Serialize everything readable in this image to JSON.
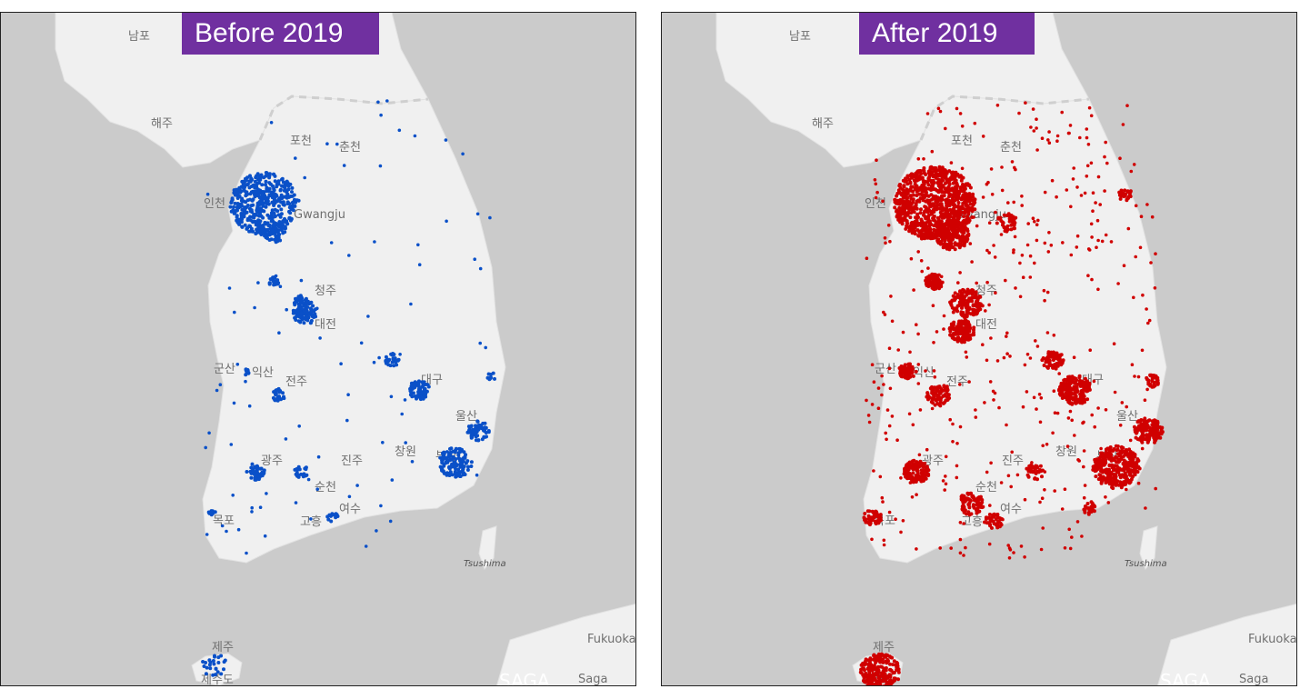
{
  "panels": [
    {
      "id": "before",
      "title": "Before 2019",
      "dot_color": "#0a50c8"
    },
    {
      "id": "after",
      "title": "After 2019",
      "dot_color": "#d00000"
    }
  ],
  "map_labels": {
    "nampo": "남포",
    "haeju": "해주",
    "pocheon": "포천",
    "chuncheon": "춘천",
    "incheon": "인천",
    "gwangju_gg": "Gwangju",
    "cheongju": "청주",
    "daejeon": "대전",
    "gunsan": "군산",
    "iksan": "익산",
    "jeonju": "전주",
    "daegu": "대구",
    "ulsan": "울산",
    "changwon": "창원",
    "busan": "부산",
    "gwangju": "광주",
    "jinju": "진주",
    "suncheon": "순천",
    "yeosu": "여수",
    "goheung": "고흥",
    "mokpo": "목포",
    "tsushima": "Tsushima",
    "fukuoka": "Fukuoka",
    "saga_pref": "SAGA",
    "saga": "Saga",
    "jeju": "제주",
    "jejudo": "제주도"
  }
}
